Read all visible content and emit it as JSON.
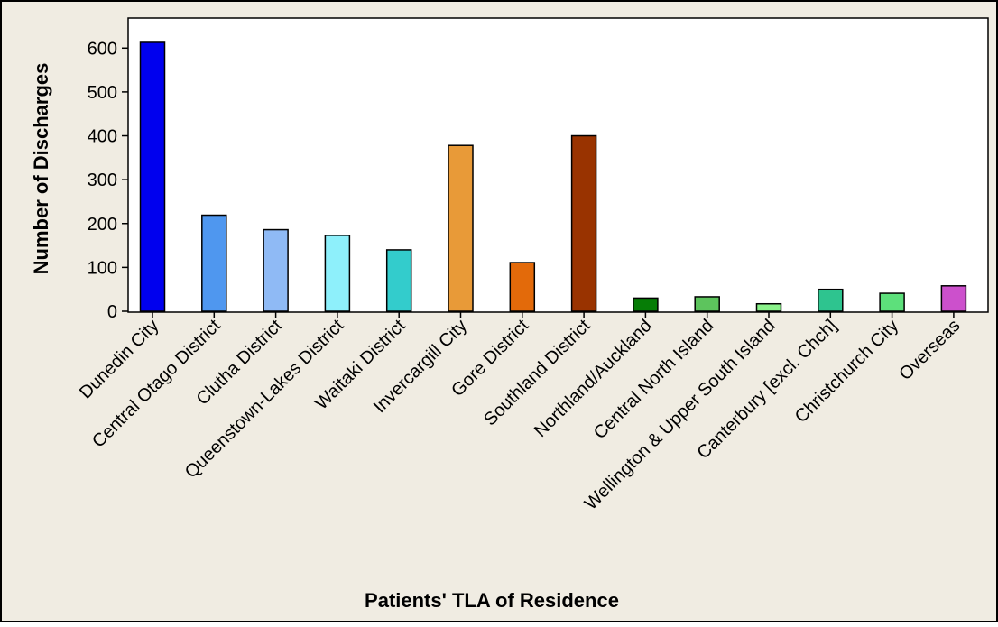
{
  "chart_data": {
    "type": "bar",
    "title": "",
    "xlabel": "Patients' TLA of Residence",
    "ylabel": "Number of Discharges",
    "categories": [
      "Dunedin City",
      "Central Otago District",
      "Clutha District",
      "Queenstown-Lakes District",
      "Waitaki District",
      "Invercargill City",
      "Gore District",
      "Southland District",
      "Northland/Auckland",
      "Central North Island",
      "Wellington & Upper South Island",
      "Canterbury [excl. Chch]",
      "Christchurch City",
      "Overseas"
    ],
    "values": [
      613,
      219,
      186,
      173,
      140,
      378,
      111,
      400,
      30,
      33,
      17,
      50,
      41,
      58
    ],
    "colors": [
      "#0000ee",
      "#4f97ef",
      "#8fbaf5",
      "#8ef0fb",
      "#33cccc",
      "#e89a38",
      "#e36a0a",
      "#993300",
      "#067d06",
      "#5dc45d",
      "#8af28a",
      "#2ec48f",
      "#5de07b",
      "#cc50cc"
    ],
    "yticks": [
      "0",
      "100",
      "200",
      "300",
      "400",
      "500",
      "600"
    ],
    "ylim": [
      0,
      650
    ],
    "grid": false,
    "legend": "none",
    "background_color": "#f0ece2",
    "plot_background_color": "#ffffff"
  }
}
